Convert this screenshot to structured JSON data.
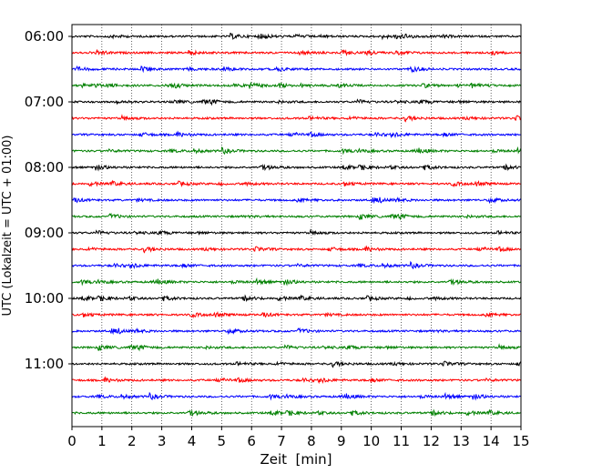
{
  "chart_data": {
    "type": "line",
    "title": "",
    "xlabel": "Zeit  [min]",
    "ylabel": "UTC (Lokalzeit = UTC + 01:00)",
    "xlim": [
      0,
      15
    ],
    "x_ticks": [
      "0",
      "1",
      "2",
      "3",
      "4",
      "5",
      "6",
      "7",
      "8",
      "9",
      "10",
      "11",
      "12",
      "13",
      "14",
      "15"
    ],
    "y_tick_labels": [
      "06:00",
      "07:00",
      "08:00",
      "09:00",
      "10:00",
      "11:00"
    ],
    "grid": "vertical dotted lines at each minute",
    "trace_interval_min": 15,
    "trace_start_times": [
      "06:00",
      "06:15",
      "06:30",
      "06:45",
      "07:00",
      "07:15",
      "07:30",
      "07:45",
      "08:00",
      "08:15",
      "08:30",
      "08:45",
      "09:00",
      "09:15",
      "09:30",
      "09:45",
      "10:00",
      "10:15",
      "10:30",
      "10:45",
      "11:00",
      "11:15",
      "11:30",
      "11:45"
    ],
    "trace_colors_cycle": [
      "#000000",
      "#ff0000",
      "#0000ff",
      "#008000"
    ],
    "series_description": "24 seismogram traces (helicorder), each spanning 15 minutes of low-amplitude noise"
  }
}
